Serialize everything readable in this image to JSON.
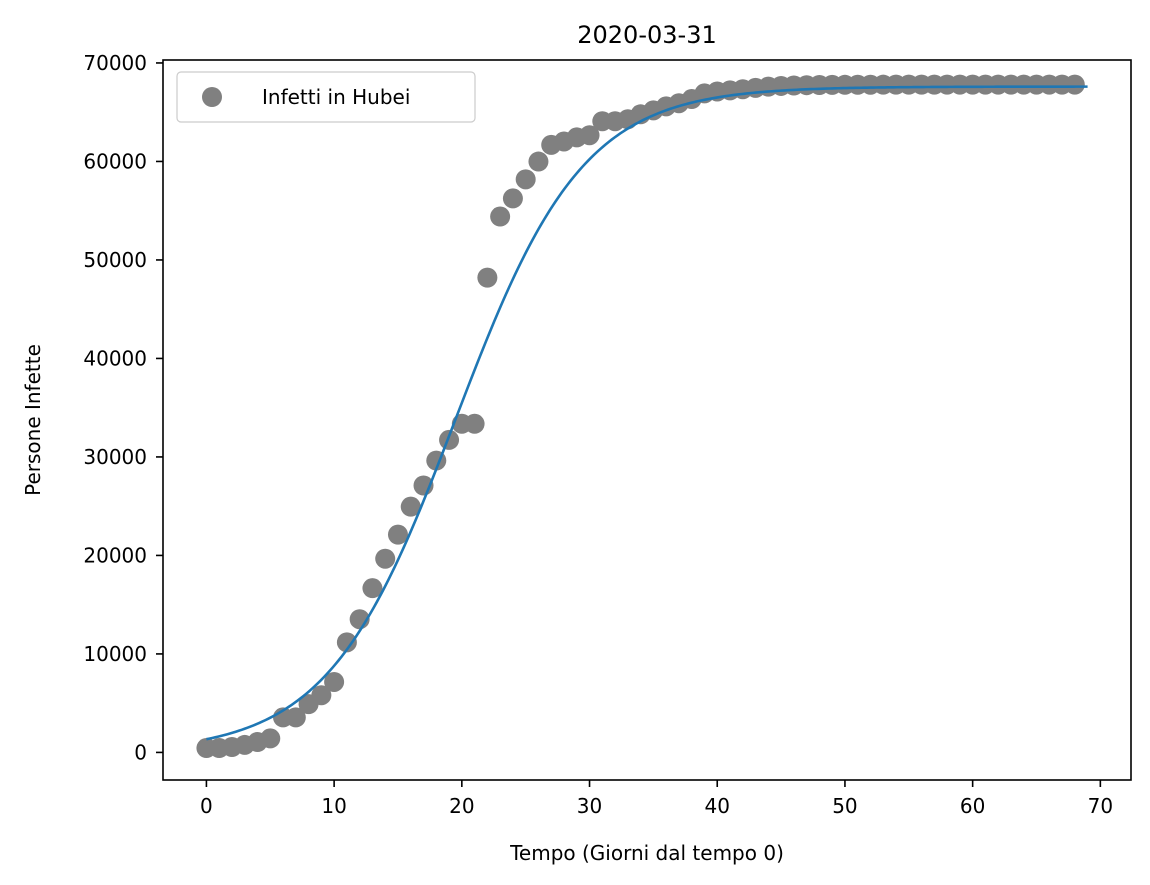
{
  "chart_data": {
    "type": "scatter",
    "title": "2020-03-31",
    "xlabel": "Tempo (Giorni dal tempo 0)",
    "ylabel": "Persone Infette",
    "xlim": [
      -3.4,
      72.4
    ],
    "ylim": [
      -2800,
      70300
    ],
    "xticks": [
      0,
      10,
      20,
      30,
      40,
      50,
      60,
      70
    ],
    "yticks": [
      0,
      10000,
      20000,
      30000,
      40000,
      50000,
      60000,
      70000
    ],
    "grid": false,
    "legend_position": "upper left",
    "colors": {
      "points": "#808080",
      "fit": "#1f77b4"
    },
    "series": [
      {
        "name": "Infetti in Hubei",
        "kind": "scatter",
        "x": [
          0,
          1,
          2,
          3,
          4,
          5,
          6,
          7,
          8,
          9,
          10,
          11,
          12,
          13,
          14,
          15,
          16,
          17,
          18,
          19,
          20,
          21,
          22,
          23,
          24,
          25,
          26,
          27,
          28,
          29,
          30,
          31,
          32,
          33,
          34,
          35,
          36,
          37,
          38,
          39,
          40,
          41,
          42,
          43,
          44,
          45,
          46,
          47,
          48,
          49,
          50,
          51,
          52,
          53,
          54,
          55,
          56,
          57,
          58,
          59,
          60,
          61,
          62,
          63,
          64,
          65,
          66,
          67,
          68
        ],
        "y": [
          444,
          444,
          549,
          761,
          1058,
          1423,
          3554,
          3554,
          4903,
          5806,
          7153,
          11177,
          13522,
          16678,
          19665,
          22112,
          24953,
          27100,
          29631,
          31728,
          33366,
          33366,
          48206,
          54406,
          56249,
          58182,
          59989,
          61682,
          62031,
          62442,
          62662,
          64084,
          64084,
          64287,
          64786,
          65187,
          65596,
          65914,
          66337,
          66907,
          67103,
          67217,
          67332,
          67466,
          67592,
          67666,
          67707,
          67743,
          67760,
          67773,
          67781,
          67786,
          67790,
          67794,
          67798,
          67799,
          67800,
          67800,
          67801,
          67801,
          67801,
          67801,
          67801,
          67801,
          67801,
          67802,
          67802,
          67803,
          67803
        ]
      },
      {
        "name": "",
        "kind": "line",
        "model": {
          "type": "logistic",
          "L": 67600,
          "k": 0.2,
          "x0": 19.5
        },
        "x_range": [
          0,
          69
        ]
      }
    ]
  }
}
